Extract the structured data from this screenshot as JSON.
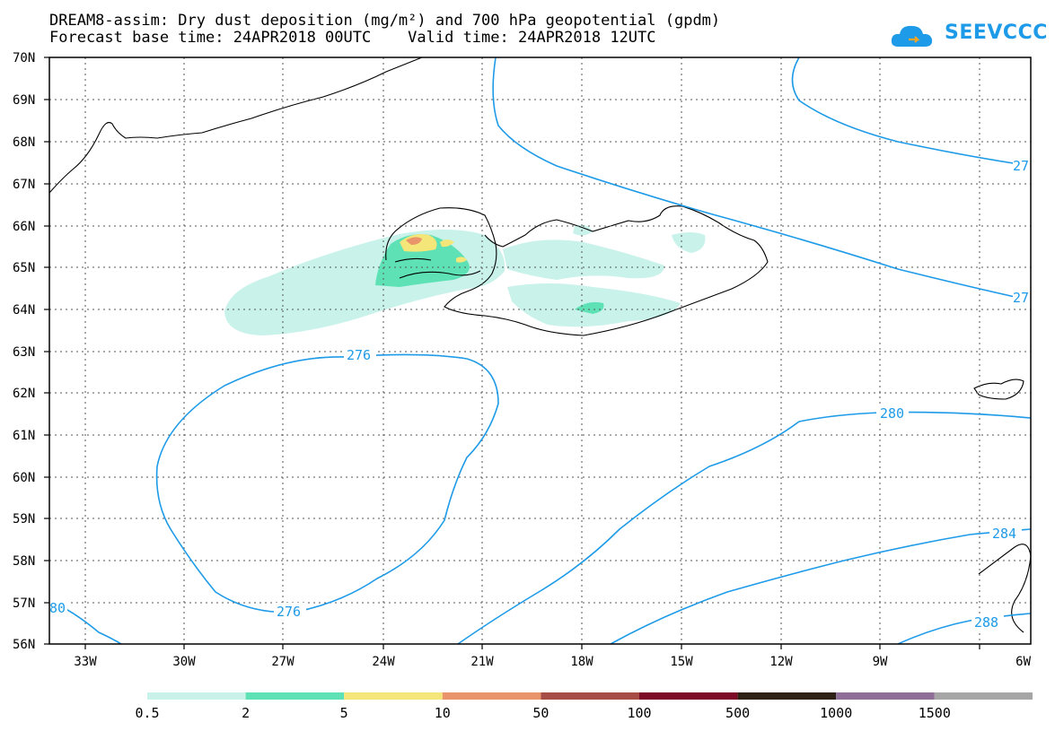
{
  "title": {
    "line1": "DREAM8-assim: Dry dust deposition (mg/m²) and 700 hPa geopotential (gpdm)",
    "line2": "Forecast base time: 24APR2018 00UTC    Valid time: 24APR2018 12UTC"
  },
  "logo": {
    "text": "SEEVCCC",
    "icon": "cloud-logo-icon",
    "color": "#1e9be8"
  },
  "map": {
    "lat_labels": [
      "70N",
      "69N",
      "68N",
      "67N",
      "66N",
      "65N",
      "64N",
      "63N",
      "62N",
      "61N",
      "60N",
      "59N",
      "58N",
      "57N",
      "56N"
    ],
    "lon_labels": [
      "33W",
      "30W",
      "27W",
      "24W",
      "21W",
      "18W",
      "15W",
      "12W",
      "9W",
      "6W"
    ],
    "contour_labels": [
      "276",
      "276",
      "280",
      "284",
      "288",
      "80",
      "27",
      "27"
    ],
    "contour_color": "#1e9be8",
    "coastline_color": "#000000"
  },
  "legend": {
    "colors": [
      "#c8f2ea",
      "#5ee2b5",
      "#f5e67a",
      "#e9946a",
      "#a84d46",
      "#7d0a26",
      "#2e2116",
      "#8f6f98",
      "#a6a6a6"
    ],
    "labels": [
      "0.5",
      "2",
      "5",
      "10",
      "50",
      "100",
      "500",
      "1000",
      "1500"
    ]
  }
}
